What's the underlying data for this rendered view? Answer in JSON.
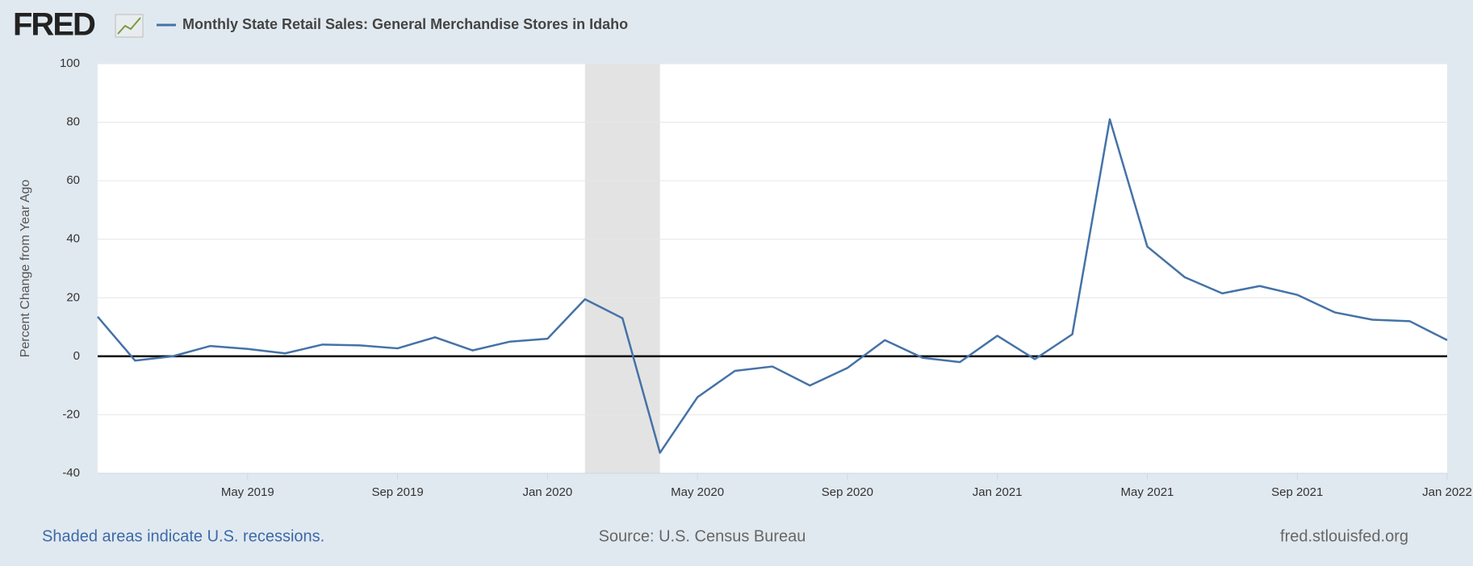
{
  "chart_data": {
    "type": "line",
    "logo": "FRED",
    "title": "Monthly State Retail Sales: General Merchandise Stores in Idaho",
    "y_label": "Percent Change from Year Ago",
    "note": "Shaded areas indicate U.S. recessions.",
    "source": "Source: U.S. Census Bureau",
    "site": "fred.stlouisfed.org",
    "x": [
      "2019-01",
      "2019-02",
      "2019-03",
      "2019-04",
      "2019-05",
      "2019-06",
      "2019-07",
      "2019-08",
      "2019-09",
      "2019-10",
      "2019-11",
      "2019-12",
      "2020-01",
      "2020-02",
      "2020-03",
      "2020-04",
      "2020-05",
      "2020-06",
      "2020-07",
      "2020-08",
      "2020-09",
      "2020-10",
      "2020-11",
      "2020-12",
      "2021-01",
      "2021-02",
      "2021-03",
      "2021-04",
      "2021-05",
      "2021-06",
      "2021-07",
      "2021-08",
      "2021-09",
      "2021-10",
      "2021-11",
      "2021-12",
      "2022-01"
    ],
    "series": [
      {
        "name": "Monthly State Retail Sales: General Merchandise Stores in Idaho",
        "color": "#4572a7",
        "values": [
          13.5,
          -1.5,
          0,
          3.5,
          2.5,
          1,
          4,
          3.7,
          2.7,
          6.5,
          2,
          5,
          6,
          19.5,
          13,
          -33,
          -14,
          -5,
          -3.5,
          -10,
          -4,
          5.5,
          -0.5,
          -2,
          7,
          -1,
          7.5,
          81,
          37.5,
          27,
          21.5,
          24,
          21,
          15,
          12.5,
          12,
          5.5
        ]
      }
    ],
    "recessions": [
      [
        "2020-02",
        "2020-04"
      ]
    ],
    "xlim": [
      "2019-01",
      "2022-01"
    ],
    "xticks": [
      {
        "value": "2019-05",
        "label": "May 2019"
      },
      {
        "value": "2019-09",
        "label": "Sep 2019"
      },
      {
        "value": "2020-01",
        "label": "Jan 2020"
      },
      {
        "value": "2020-05",
        "label": "May 2020"
      },
      {
        "value": "2020-09",
        "label": "Sep 2020"
      },
      {
        "value": "2021-01",
        "label": "Jan 2021"
      },
      {
        "value": "2021-05",
        "label": "May 2021"
      },
      {
        "value": "2021-09",
        "label": "Sep 2021"
      },
      {
        "value": "2022-01",
        "label": "Jan 2022"
      }
    ],
    "ylim": [
      -40,
      100
    ],
    "yticks": [
      -40,
      -20,
      0,
      20,
      40,
      60,
      80,
      100
    ],
    "grid": true
  }
}
